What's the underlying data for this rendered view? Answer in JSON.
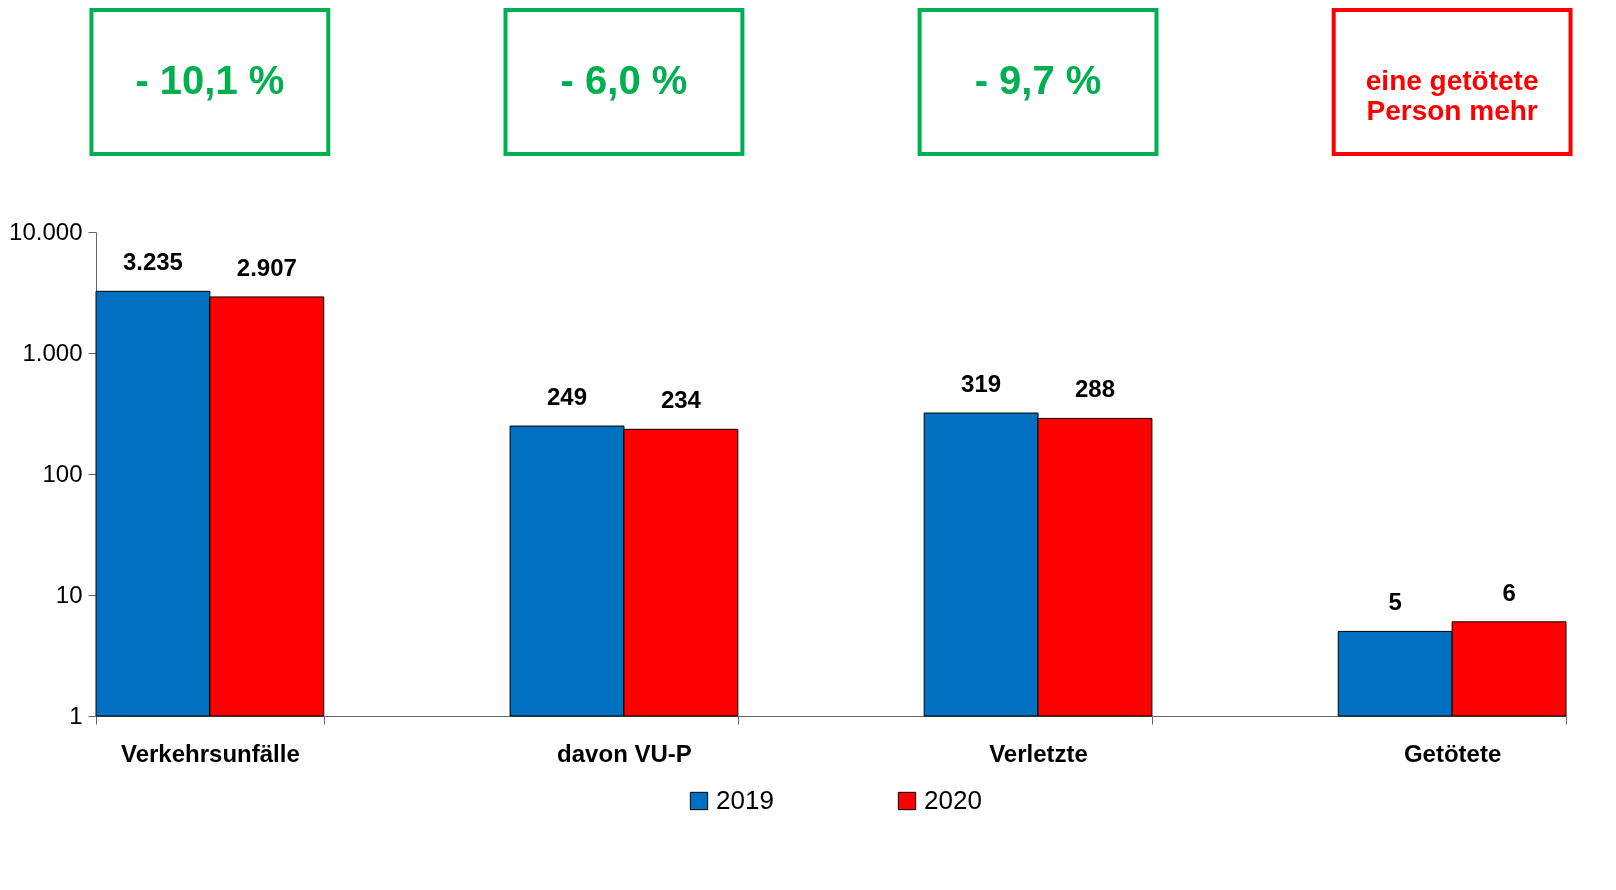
{
  "chart_data": {
    "type": "bar",
    "categories": [
      "Verkehrsunfälle",
      "davon VU-P",
      "Verletzte",
      "Getötete"
    ],
    "series": [
      {
        "name": "2019",
        "color": "#0070c0",
        "values": [
          3235,
          249,
          319,
          5
        ],
        "value_labels": [
          "3.235",
          "249",
          "319",
          "5"
        ]
      },
      {
        "name": "2020",
        "color": "#ff0000",
        "values": [
          2907,
          234,
          288,
          6
        ],
        "value_labels": [
          "2.907",
          "234",
          "288",
          "6"
        ]
      }
    ],
    "log": true,
    "ylim": [
      1,
      10000
    ],
    "yticks": [
      {
        "value": 1,
        "label": "1"
      },
      {
        "value": 10,
        "label": "10"
      },
      {
        "value": 100,
        "label": "100"
      },
      {
        "value": 1000,
        "label": "1.000"
      },
      {
        "value": 10000,
        "label": "10.000"
      }
    ],
    "grid": false,
    "legend": "bottom",
    "annotations": [
      "- 10,1 %",
      "- 6,0 %",
      "- 9,7 %",
      "eine getötete Person mehr"
    ]
  }
}
